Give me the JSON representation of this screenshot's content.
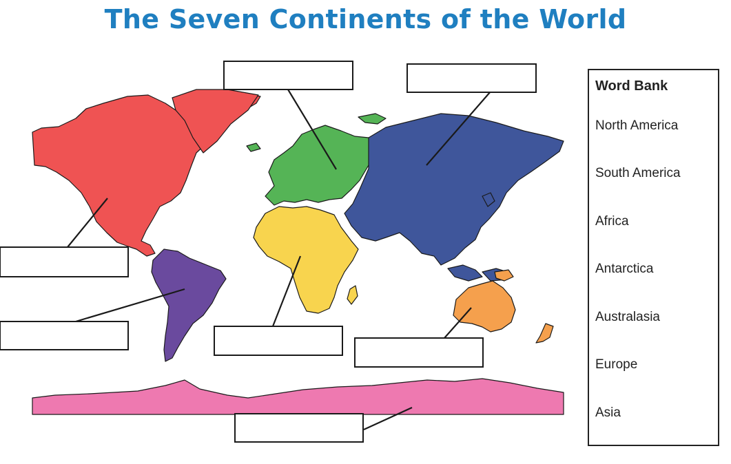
{
  "title": "The Seven Continents of the World",
  "word_bank": {
    "heading": "Word Bank",
    "words": [
      "North America",
      "South America",
      "Africa",
      "Antarctica",
      "Australasia",
      "Europe",
      "Asia"
    ]
  },
  "continents": [
    {
      "key": "north-america",
      "color": "#ef5353"
    },
    {
      "key": "south-america",
      "color": "#6a4a9e"
    },
    {
      "key": "europe",
      "color": "#55b456"
    },
    {
      "key": "africa",
      "color": "#f8d44e"
    },
    {
      "key": "asia",
      "color": "#3f569b"
    },
    {
      "key": "australasia",
      "color": "#f5a04d"
    },
    {
      "key": "antarctica",
      "color": "#ee79b0"
    }
  ],
  "answer_boxes": [
    {
      "key": "europe-label-box",
      "value": ""
    },
    {
      "key": "asia-label-box",
      "value": ""
    },
    {
      "key": "north-america-label-box",
      "value": ""
    },
    {
      "key": "south-america-label-box",
      "value": ""
    },
    {
      "key": "africa-label-box",
      "value": ""
    },
    {
      "key": "australasia-label-box",
      "value": ""
    },
    {
      "key": "antarctica-label-box",
      "value": ""
    }
  ],
  "colors": {
    "title": "#1f7fc0",
    "outline": "#1a1a1a"
  }
}
